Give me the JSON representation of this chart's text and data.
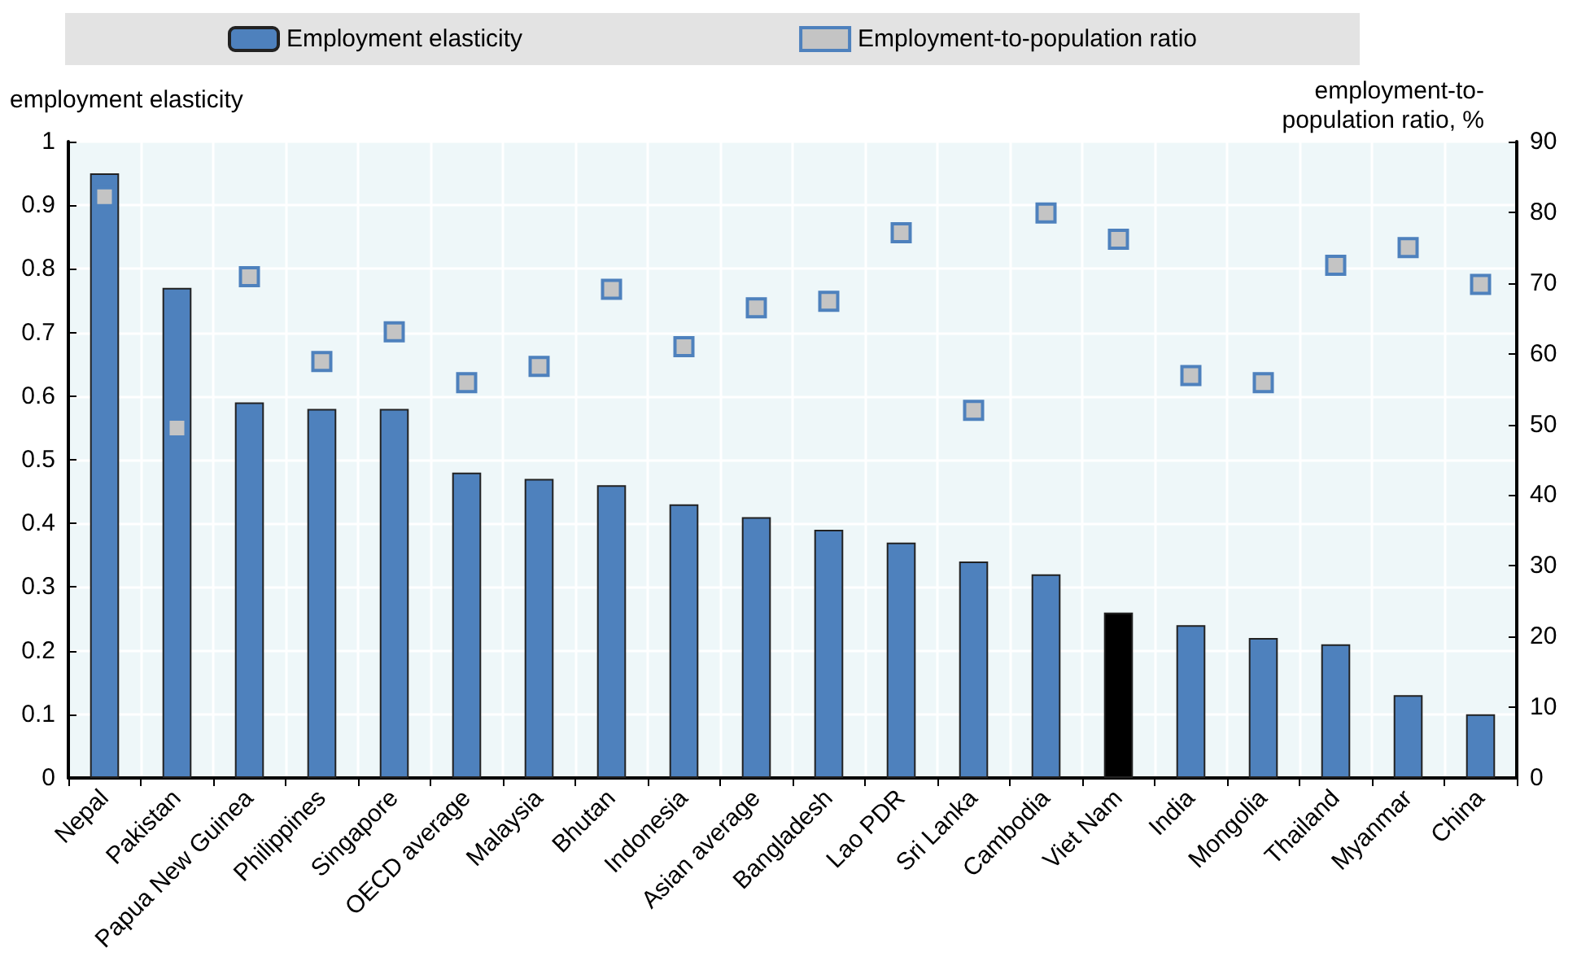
{
  "chart_data": {
    "type": "bar",
    "ylabel": "employment elasticity",
    "y2label": "employment-to-\npopulation ratio, %",
    "categories": [
      "Nepal",
      "Pakistan",
      "Papua New Guinea",
      "Philippines",
      "Singapore",
      "OECD average",
      "Malaysia",
      "Bhutan",
      "Indonesia",
      "Asian average",
      "Bangladesh",
      "Lao PDR",
      "Sri Lanka",
      "Cambodia",
      "Viet Nam",
      "India",
      "Mongolia",
      "Thailand",
      "Myanmar",
      "China"
    ],
    "series": [
      {
        "name": "Employment elasticity",
        "color": "#4e81bd",
        "colors": [
          "#4e81bd",
          "#4e81bd",
          "#4e81bd",
          "#4e81bd",
          "#4e81bd",
          "#4e81bd",
          "#4e81bd",
          "#4e81bd",
          "#4e81bd",
          "#4e81bd",
          "#4e81bd",
          "#4e81bd",
          "#4e81bd",
          "#4e81bd",
          "#000000",
          "#4e81bd",
          "#4e81bd",
          "#4e81bd",
          "#4e81bd",
          "#4e81bd"
        ],
        "values": [
          0.95,
          0.77,
          0.59,
          0.58,
          0.58,
          0.48,
          0.47,
          0.46,
          0.43,
          0.41,
          0.39,
          0.37,
          0.34,
          0.32,
          0.26,
          0.24,
          0.22,
          0.21,
          0.13,
          0.1
        ]
      },
      {
        "name": "Employment-to-population ratio",
        "type": "scatter",
        "axis": "y2",
        "color": "#c4c4c4",
        "values": [
          82.2,
          49.5,
          70.9,
          58.9,
          63.1,
          55.9,
          58.2,
          69.1,
          61.0,
          66.5,
          67.4,
          77.1,
          52.0,
          79.9,
          76.2,
          56.9,
          55.9,
          72.5,
          75.0,
          69.8
        ]
      }
    ],
    "ylim": [
      0,
      1
    ],
    "yticks": [
      0,
      0.1,
      0.2,
      0.3,
      0.4,
      0.5,
      0.6,
      0.7,
      0.8,
      0.9,
      1
    ],
    "y2lim": [
      0,
      90
    ],
    "y2ticks": [
      0,
      10,
      20,
      30,
      40,
      50,
      60,
      70,
      80,
      90
    ],
    "grid": true,
    "legend": "top",
    "marker": "square"
  }
}
